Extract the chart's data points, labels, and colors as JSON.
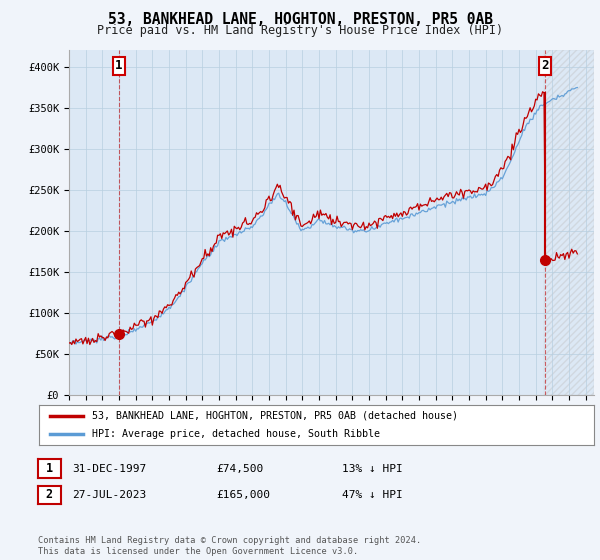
{
  "title": "53, BANKHEAD LANE, HOGHTON, PRESTON, PR5 0AB",
  "subtitle": "Price paid vs. HM Land Registry's House Price Index (HPI)",
  "xlim": [
    1995.0,
    2026.5
  ],
  "ylim": [
    0,
    420000
  ],
  "yticks": [
    0,
    50000,
    100000,
    150000,
    200000,
    250000,
    300000,
    350000,
    400000
  ],
  "ytick_labels": [
    "£0",
    "£50K",
    "£100K",
    "£150K",
    "£200K",
    "£250K",
    "£300K",
    "£350K",
    "£400K"
  ],
  "xtick_years": [
    1995,
    1996,
    1997,
    1998,
    1999,
    2000,
    2001,
    2002,
    2003,
    2004,
    2005,
    2006,
    2007,
    2008,
    2009,
    2010,
    2011,
    2012,
    2013,
    2014,
    2015,
    2016,
    2017,
    2018,
    2019,
    2020,
    2021,
    2022,
    2023,
    2024,
    2025,
    2026
  ],
  "hpi_color": "#5b9bd5",
  "price_color": "#c00000",
  "transaction1_x": 1997.99,
  "transaction1_y": 74500,
  "transaction1_label": "1",
  "transaction2_x": 2023.57,
  "transaction2_y": 165000,
  "transaction2_label": "2",
  "legend_label_red": "53, BANKHEAD LANE, HOGHTON, PRESTON, PR5 0AB (detached house)",
  "legend_label_blue": "HPI: Average price, detached house, South Ribble",
  "table_row1": [
    "1",
    "31-DEC-1997",
    "£74,500",
    "13% ↓ HPI"
  ],
  "table_row2": [
    "2",
    "27-JUL-2023",
    "£165,000",
    "47% ↓ HPI"
  ],
  "footer": "Contains HM Land Registry data © Crown copyright and database right 2024.\nThis data is licensed under the Open Government Licence v3.0.",
  "background_color": "#f0f4fa",
  "plot_bg_color": "#dce8f5",
  "grid_color": "#b8cfe0"
}
